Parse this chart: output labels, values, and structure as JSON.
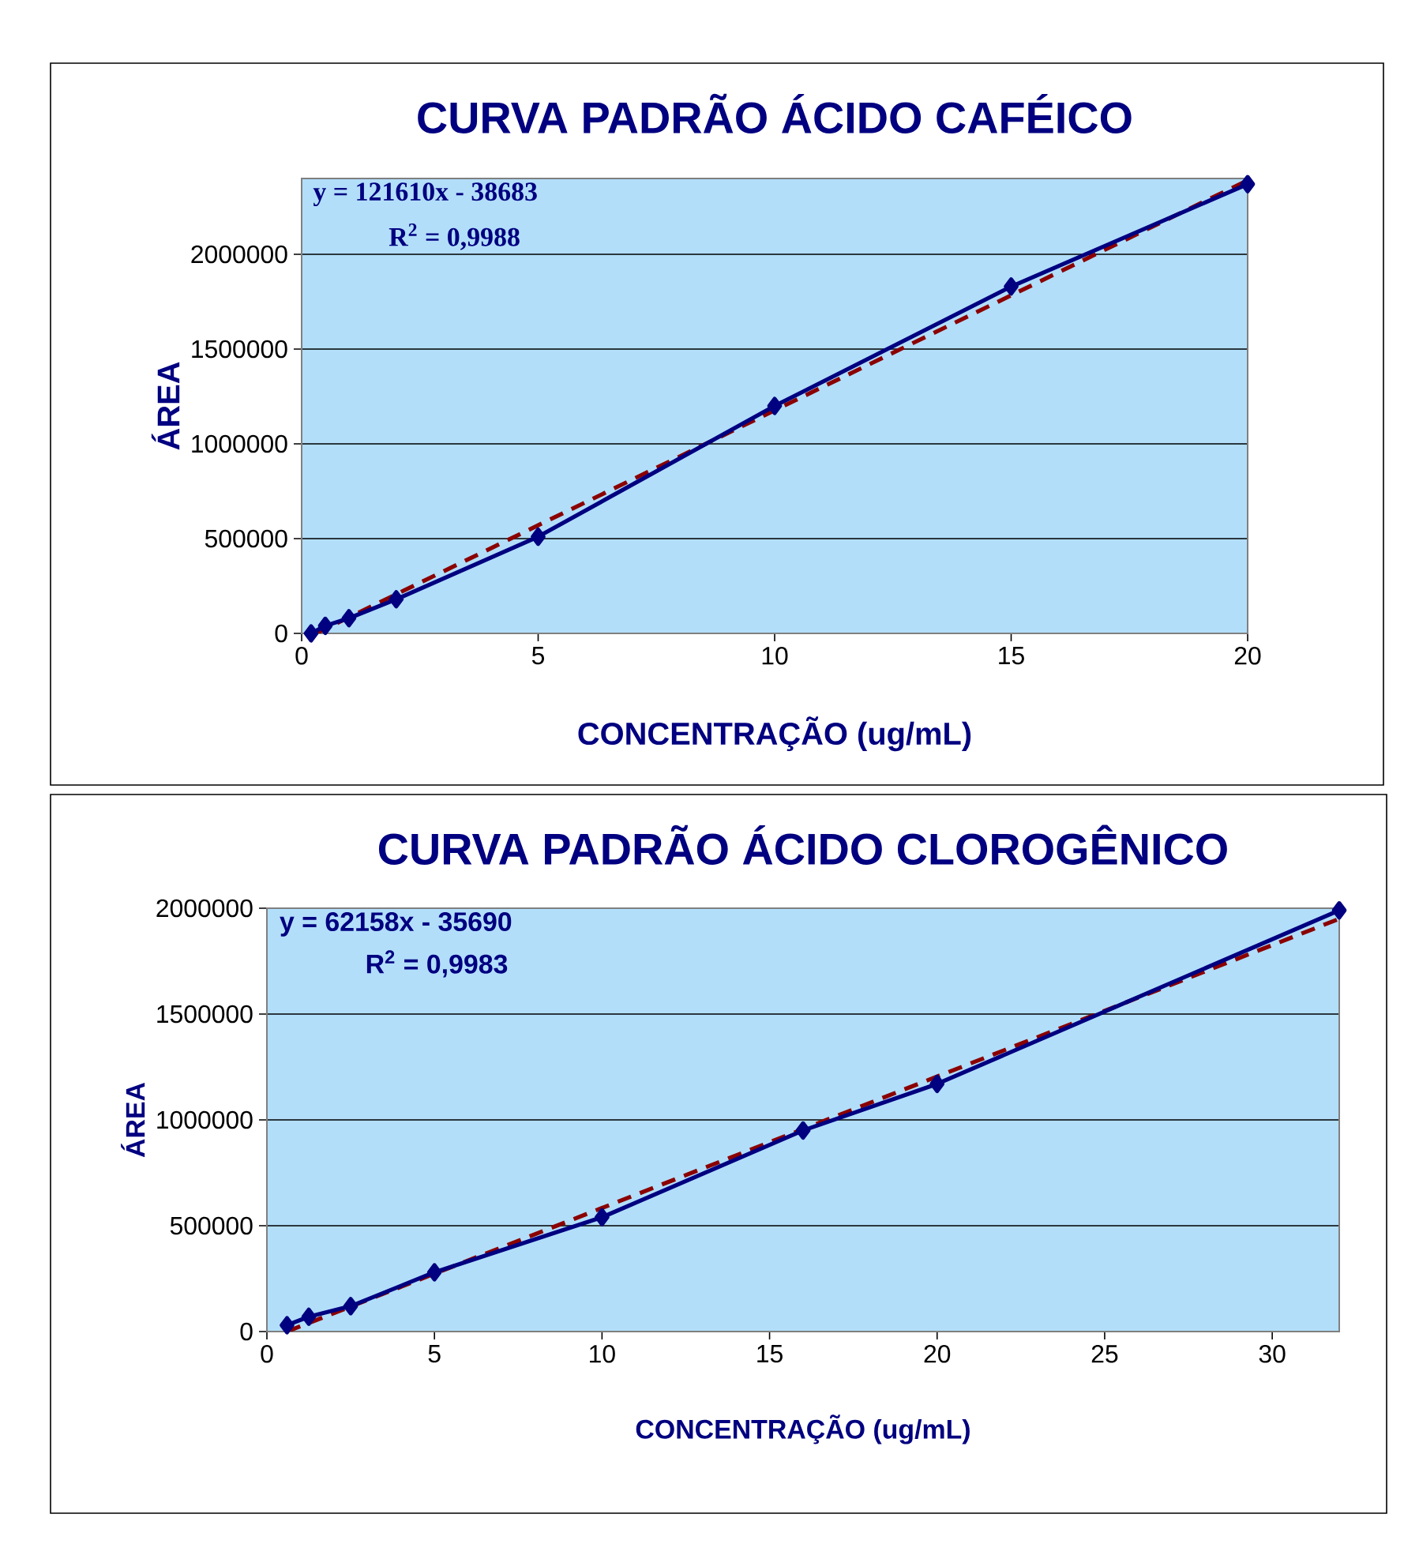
{
  "chart_data": [
    {
      "type": "line",
      "title": "CURVA PADRÃO ÁCIDO CAFÉICO",
      "xlabel": "CONCENTRAÇÃO (ug/mL)",
      "ylabel": "ÁREA",
      "x": [
        0.2,
        0.5,
        1,
        2,
        5,
        10,
        15,
        20
      ],
      "series": [
        {
          "color": "#000080",
          "values": [
            0,
            40000,
            80000,
            180000,
            510000,
            1200000,
            1830000,
            2370000
          ]
        },
        {
          "type": "line",
          "color": "#8b0000",
          "line_style": "dashed",
          "marker": "none",
          "x": [
            0.3,
            20
          ],
          "values": [
            0,
            2390000
          ]
        }
      ],
      "marker": "diamond",
      "grid": "y",
      "xlim": [
        0,
        20
      ],
      "xticks": [
        0,
        5,
        10,
        15,
        20
      ],
      "ylim": [
        0,
        2400000
      ],
      "yticks": [
        0,
        500000,
        1000000,
        1500000,
        2000000
      ],
      "annotations": [
        "y = 121610x - 38683",
        "R$^{2}$ = 0,9988"
      ]
    },
    {
      "type": "line",
      "title": "CURVA PADRÃO ÁCIDO CLOROGÊNICO",
      "xlabel": "CONCENTRAÇÃO (ug/mL)",
      "ylabel": "ÁREA",
      "x": [
        0.6,
        1.25,
        2.5,
        5,
        10,
        16,
        20,
        32
      ],
      "series": [
        {
          "color": "#000080",
          "values": [
            30000,
            70000,
            120000,
            280000,
            540000,
            950000,
            1170000,
            1990000
          ]
        },
        {
          "type": "line",
          "color": "#8b0000",
          "line_style": "dashed",
          "marker": "none",
          "x": [
            0.6,
            32
          ],
          "values": [
            0,
            1950000
          ]
        }
      ],
      "marker": "diamond",
      "grid": "y",
      "xlim": [
        0,
        32
      ],
      "xticks": [
        0,
        5,
        10,
        15,
        20,
        25,
        30
      ],
      "ylim": [
        0,
        2000000
      ],
      "yticks": [
        0,
        500000,
        1000000,
        1500000,
        2000000
      ],
      "annotations": [
        "y = 62158x - 35690",
        "R$^{2}$ = 0,9983"
      ]
    }
  ]
}
